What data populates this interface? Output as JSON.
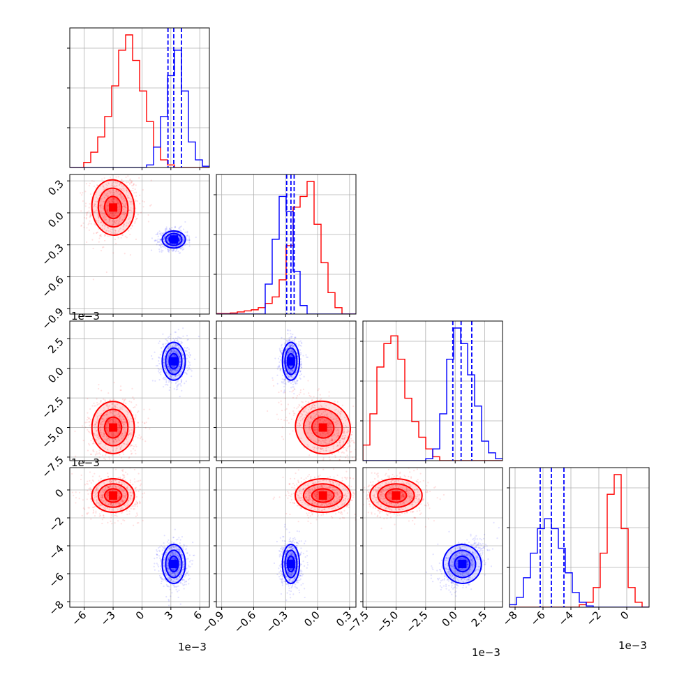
{
  "chart_data": {
    "type": "corner",
    "title": "",
    "grid": true,
    "parameters": [
      {
        "index": 0,
        "range": [
          -7.5,
          7.0
        ],
        "ticks": [
          -6,
          -3,
          0,
          3,
          6
        ],
        "tick_labels": [
          "−6",
          "−3",
          "0",
          "3",
          "6"
        ],
        "offset_label": "1e−3"
      },
      {
        "index": 1,
        "range": [
          -0.95,
          0.36
        ],
        "ticks": [
          -0.9,
          -0.6,
          -0.3,
          0.0,
          0.3
        ],
        "tick_labels": [
          "−0.9",
          "−0.6",
          "−0.3",
          "0.0",
          "0.3"
        ],
        "offset_label": ""
      },
      {
        "index": 2,
        "range": [
          -7.8,
          4.0
        ],
        "ticks": [
          -7.5,
          -5.0,
          -2.5,
          0.0,
          2.5
        ],
        "tick_labels": [
          "−7.5",
          "−5.0",
          "−2.5",
          "0.0",
          "2.5"
        ],
        "offset_label": "1e−3"
      },
      {
        "index": 3,
        "range": [
          -8.4,
          1.6
        ],
        "ticks": [
          -8,
          -6,
          -4,
          -2,
          0
        ],
        "tick_labels": [
          "−8",
          "−6",
          "−4",
          "−2",
          "0"
        ],
        "offset_label": "1e−3"
      }
    ],
    "y_ticks": {
      "1": {
        "ticks": [
          -0.9,
          -0.6,
          -0.3,
          0.0,
          0.3
        ],
        "tick_labels": [
          "−0.9",
          "−0.6",
          "−0.3",
          "0.0",
          "0.3"
        ]
      },
      "2": {
        "ticks": [
          -7.5,
          -5.0,
          -2.5,
          0.0,
          2.5
        ],
        "tick_labels": [
          "−7.5",
          "−5.0",
          "−2.5",
          "0.0",
          "2.5"
        ]
      },
      "3": {
        "ticks": [
          -8,
          -6,
          -4,
          -2,
          0
        ],
        "tick_labels": [
          "−8",
          "−6",
          "−4",
          "−2",
          "0"
        ]
      }
    },
    "series": [
      {
        "color": "#ff0000",
        "mean": [
          -3.0,
          0.05,
          -5.0,
          -0.4
        ],
        "std": [
          1.1,
          0.13,
          1.1,
          0.6
        ],
        "hist": [
          [
            0,
            0,
            0.2,
            0.6,
            1.2,
            2.0,
            3.2,
            4.6,
            5.2,
            4.2,
            3.0,
            1.8,
            0.8,
            0.3,
            0.1,
            0,
            0,
            0,
            0,
            0
          ],
          [
            0.02,
            0.02,
            0.05,
            0.1,
            0.15,
            0.2,
            0.3,
            0.5,
            0.8,
            1.6,
            3.2,
            5.0,
            5.5,
            6.2,
            4.2,
            2.4,
            1.0,
            0.3,
            0,
            0
          ],
          [
            0.4,
            1.2,
            2.4,
            3.0,
            3.2,
            2.6,
            1.6,
            1.0,
            0.6,
            0.3,
            0.1,
            0,
            0,
            0,
            0,
            0,
            0,
            0,
            0,
            0
          ],
          [
            0,
            0,
            0,
            0,
            0,
            0,
            0,
            0,
            0,
            0,
            0.1,
            0.2,
            0.8,
            2.2,
            4.6,
            5.4,
            3.2,
            0.8,
            0.2,
            0
          ]
        ]
      },
      {
        "color": "#0000ff",
        "mean": [
          3.3,
          -0.25,
          0.6,
          -5.3
        ],
        "std": [
          0.6,
          0.04,
          0.8,
          0.7
        ],
        "hist": [
          [
            0,
            0,
            0,
            0,
            0,
            0,
            0,
            0,
            0,
            0,
            0,
            0.1,
            0.8,
            2.0,
            3.6,
            4.6,
            3.0,
            1.0,
            0.3,
            0.05
          ],
          [
            0,
            0,
            0,
            0,
            0,
            0,
            0,
            1.4,
            3.5,
            5.5,
            4.8,
            2.0,
            0.4,
            0,
            0,
            0,
            0,
            0,
            0,
            0
          ],
          [
            0,
            0,
            0,
            0,
            0,
            0,
            0,
            0,
            0,
            0.05,
            0.3,
            1.2,
            2.6,
            3.4,
            3.0,
            2.2,
            1.4,
            0.5,
            0.2,
            0.05
          ],
          [
            0.1,
            0.4,
            1.2,
            2.2,
            3.2,
            3.6,
            3.2,
            2.4,
            1.4,
            0.6,
            0.2,
            0.05,
            0,
            0,
            0,
            0,
            0,
            0,
            0,
            0
          ]
        ],
        "quantiles": [
          [
            2.7,
            3.3,
            4.1
          ],
          [
            -0.29,
            -0.25,
            -0.22
          ],
          [
            -0.2,
            0.5,
            1.4
          ],
          [
            -6.2,
            -5.4,
            -4.5
          ]
        ]
      }
    ]
  }
}
